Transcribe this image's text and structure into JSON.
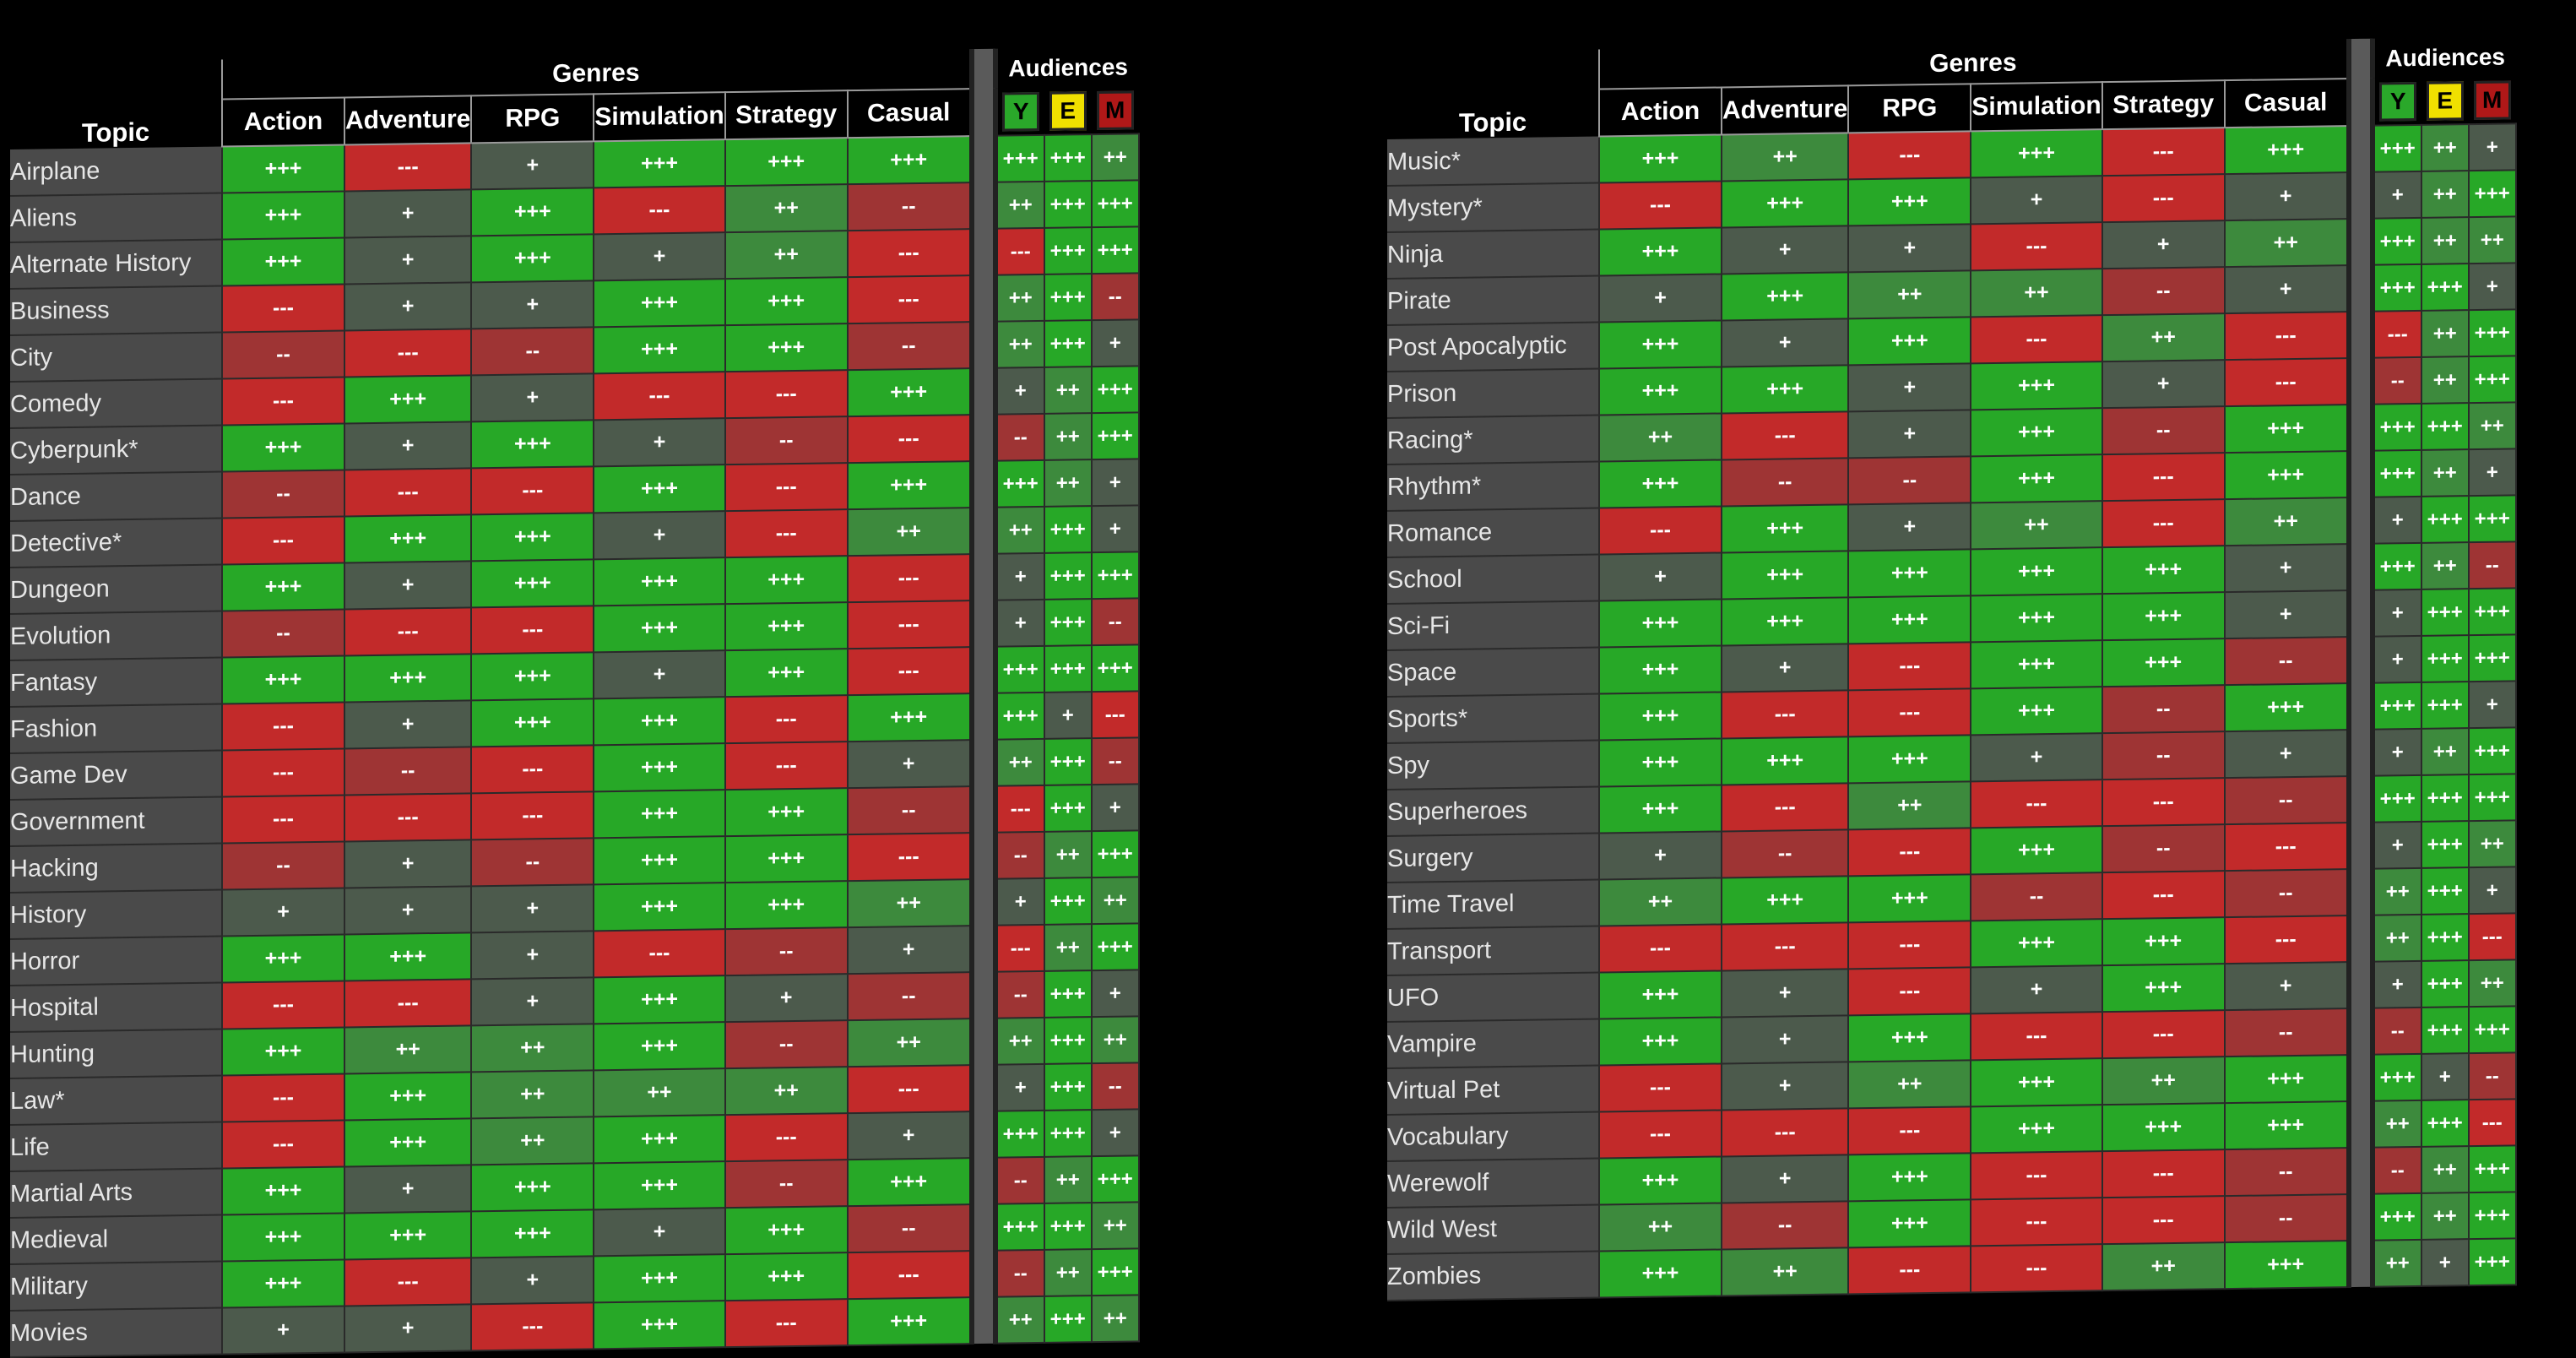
{
  "left": {
    "genres_title": "Genres",
    "audiences_title": "Audiences",
    "topic_header": "Topic",
    "genres": [
      "Action",
      "Adventure",
      "RPG",
      "Simulation",
      "Strategy",
      "Casual"
    ],
    "audiences": [
      "Y",
      "E",
      "M"
    ],
    "rows": [
      {
        "topic": "Airplane",
        "g": [
          "+++",
          "---",
          "+",
          "+++",
          "+++",
          "+++"
        ],
        "a": [
          "+++",
          "+++",
          "++"
        ]
      },
      {
        "topic": "Aliens",
        "g": [
          "+++",
          "+",
          "+++",
          "---",
          "++",
          "--"
        ],
        "a": [
          "++",
          "+++",
          "+++"
        ]
      },
      {
        "topic": "Alternate History",
        "g": [
          "+++",
          "+",
          "+++",
          "+",
          "++",
          "---"
        ],
        "a": [
          "---",
          "+++",
          "+++"
        ]
      },
      {
        "topic": "Business",
        "g": [
          "---",
          "+",
          "+",
          "+++",
          "+++",
          "---"
        ],
        "a": [
          "++",
          "+++",
          "--"
        ]
      },
      {
        "topic": "City",
        "g": [
          "--",
          "---",
          "--",
          "+++",
          "+++",
          "--"
        ],
        "a": [
          "++",
          "+++",
          "+"
        ]
      },
      {
        "topic": "Comedy",
        "g": [
          "---",
          "+++",
          "+",
          "---",
          "---",
          "+++"
        ],
        "a": [
          "+",
          "++",
          "+++"
        ]
      },
      {
        "topic": "Cyberpunk*",
        "g": [
          "+++",
          "+",
          "+++",
          "+",
          "--",
          "---"
        ],
        "a": [
          "--",
          "++",
          "+++"
        ]
      },
      {
        "topic": "Dance",
        "g": [
          "--",
          "---",
          "---",
          "+++",
          "---",
          "+++"
        ],
        "a": [
          "+++",
          "++",
          "+"
        ]
      },
      {
        "topic": "Detective*",
        "g": [
          "---",
          "+++",
          "+++",
          "+",
          "---",
          "++"
        ],
        "a": [
          "++",
          "+++",
          "+"
        ]
      },
      {
        "topic": "Dungeon",
        "g": [
          "+++",
          "+",
          "+++",
          "+++",
          "+++",
          "---"
        ],
        "a": [
          "+",
          "+++",
          "+++"
        ]
      },
      {
        "topic": "Evolution",
        "g": [
          "--",
          "---",
          "---",
          "+++",
          "+++",
          "---"
        ],
        "a": [
          "+",
          "+++",
          "--"
        ]
      },
      {
        "topic": "Fantasy",
        "g": [
          "+++",
          "+++",
          "+++",
          "+",
          "+++",
          "---"
        ],
        "a": [
          "+++",
          "+++",
          "+++"
        ]
      },
      {
        "topic": "Fashion",
        "g": [
          "---",
          "+",
          "+++",
          "+++",
          "---",
          "+++"
        ],
        "a": [
          "+++",
          "+",
          "---"
        ]
      },
      {
        "topic": "Game Dev",
        "g": [
          "---",
          "--",
          "---",
          "+++",
          "---",
          "+"
        ],
        "a": [
          "++",
          "+++",
          "--"
        ]
      },
      {
        "topic": "Government",
        "g": [
          "---",
          "---",
          "---",
          "+++",
          "+++",
          "--"
        ],
        "a": [
          "---",
          "+++",
          "+"
        ]
      },
      {
        "topic": "Hacking",
        "g": [
          "--",
          "+",
          "--",
          "+++",
          "+++",
          "---"
        ],
        "a": [
          "--",
          "++",
          "+++"
        ]
      },
      {
        "topic": "History",
        "g": [
          "+",
          "+",
          "+",
          "+++",
          "+++",
          "++"
        ],
        "a": [
          "+",
          "+++",
          "++"
        ]
      },
      {
        "topic": "Horror",
        "g": [
          "+++",
          "+++",
          "+",
          "---",
          "--",
          "+"
        ],
        "a": [
          "---",
          "++",
          "+++"
        ]
      },
      {
        "topic": "Hospital",
        "g": [
          "---",
          "---",
          "+",
          "+++",
          "+",
          "--"
        ],
        "a": [
          "--",
          "+++",
          "+"
        ]
      },
      {
        "topic": "Hunting",
        "g": [
          "+++",
          "++",
          "++",
          "+++",
          "--",
          "++"
        ],
        "a": [
          "++",
          "+++",
          "++"
        ]
      },
      {
        "topic": "Law*",
        "g": [
          "---",
          "+++",
          "++",
          "++",
          "++",
          "---"
        ],
        "a": [
          "+",
          "+++",
          "--"
        ]
      },
      {
        "topic": "Life",
        "g": [
          "---",
          "+++",
          "++",
          "+++",
          "---",
          "+"
        ],
        "a": [
          "+++",
          "+++",
          "+"
        ]
      },
      {
        "topic": "Martial Arts",
        "g": [
          "+++",
          "+",
          "+++",
          "+++",
          "--",
          "+++"
        ],
        "a": [
          "--",
          "++",
          "+++"
        ]
      },
      {
        "topic": "Medieval",
        "g": [
          "+++",
          "+++",
          "+++",
          "+",
          "+++",
          "--"
        ],
        "a": [
          "+++",
          "+++",
          "++"
        ]
      },
      {
        "topic": "Military",
        "g": [
          "+++",
          "---",
          "+",
          "+++",
          "+++",
          "---"
        ],
        "a": [
          "--",
          "++",
          "+++"
        ]
      },
      {
        "topic": "Movies",
        "g": [
          "+",
          "+",
          "---",
          "+++",
          "---",
          "+++"
        ],
        "a": [
          "++",
          "+++",
          "++"
        ]
      }
    ]
  },
  "right": {
    "genres_title": "Genres",
    "audiences_title": "Audiences",
    "topic_header": "Topic",
    "genres": [
      "Action",
      "Adventure",
      "RPG",
      "Simulation",
      "Strategy",
      "Casual"
    ],
    "audiences": [
      "Y",
      "E",
      "M"
    ],
    "rows": [
      {
        "topic": "Music*",
        "g": [
          "+++",
          "++",
          "---",
          "+++",
          "---",
          "+++"
        ],
        "a": [
          "+++",
          "++",
          "+"
        ]
      },
      {
        "topic": "Mystery*",
        "g": [
          "---",
          "+++",
          "+++",
          "+",
          "---",
          "+"
        ],
        "a": [
          "+",
          "++",
          "+++"
        ]
      },
      {
        "topic": "Ninja",
        "g": [
          "+++",
          "+",
          "+",
          "---",
          "+",
          "++"
        ],
        "a": [
          "+++",
          "++",
          "++"
        ]
      },
      {
        "topic": "Pirate",
        "g": [
          "+",
          "+++",
          "++",
          "++",
          "--",
          "+"
        ],
        "a": [
          "+++",
          "+++",
          "+"
        ]
      },
      {
        "topic": "Post Apocalyptic",
        "g": [
          "+++",
          "+",
          "+++",
          "---",
          "++",
          "---"
        ],
        "a": [
          "---",
          "++",
          "+++"
        ]
      },
      {
        "topic": "Prison",
        "g": [
          "+++",
          "+++",
          "+",
          "+++",
          "+",
          "---"
        ],
        "a": [
          "--",
          "++",
          "+++"
        ]
      },
      {
        "topic": "Racing*",
        "g": [
          "++",
          "---",
          "+",
          "+++",
          "--",
          "+++"
        ],
        "a": [
          "+++",
          "+++",
          "++"
        ]
      },
      {
        "topic": "Rhythm*",
        "g": [
          "+++",
          "--",
          "--",
          "+++",
          "---",
          "+++"
        ],
        "a": [
          "+++",
          "++",
          "+"
        ]
      },
      {
        "topic": "Romance",
        "g": [
          "---",
          "+++",
          "+",
          "++",
          "---",
          "++"
        ],
        "a": [
          "+",
          "+++",
          "+++"
        ]
      },
      {
        "topic": "School",
        "g": [
          "+",
          "+++",
          "+++",
          "+++",
          "+++",
          "+"
        ],
        "a": [
          "+++",
          "++",
          "--"
        ]
      },
      {
        "topic": "Sci-Fi",
        "g": [
          "+++",
          "+++",
          "+++",
          "+++",
          "+++",
          "+"
        ],
        "a": [
          "+",
          "+++",
          "+++"
        ]
      },
      {
        "topic": "Space",
        "g": [
          "+++",
          "+",
          "---",
          "+++",
          "+++",
          "--"
        ],
        "a": [
          "+",
          "+++",
          "+++"
        ]
      },
      {
        "topic": "Sports*",
        "g": [
          "+++",
          "---",
          "---",
          "+++",
          "--",
          "+++"
        ],
        "a": [
          "+++",
          "+++",
          "+"
        ]
      },
      {
        "topic": "Spy",
        "g": [
          "+++",
          "+++",
          "+++",
          "+",
          "--",
          "+"
        ],
        "a": [
          "+",
          "++",
          "+++"
        ]
      },
      {
        "topic": "Superheroes",
        "g": [
          "+++",
          "---",
          "++",
          "---",
          "---",
          "--"
        ],
        "a": [
          "+++",
          "+++",
          "+++"
        ]
      },
      {
        "topic": "Surgery",
        "g": [
          "+",
          "--",
          "---",
          "+++",
          "--",
          "---"
        ],
        "a": [
          "+",
          "+++",
          "++"
        ]
      },
      {
        "topic": "Time Travel",
        "g": [
          "++",
          "+++",
          "+++",
          "--",
          "---",
          "--"
        ],
        "a": [
          "++",
          "+++",
          "+"
        ]
      },
      {
        "topic": "Transport",
        "g": [
          "---",
          "---",
          "---",
          "+++",
          "+++",
          "---"
        ],
        "a": [
          "++",
          "+++",
          "---"
        ]
      },
      {
        "topic": "UFO",
        "g": [
          "+++",
          "+",
          "---",
          "+",
          "+++",
          "+"
        ],
        "a": [
          "+",
          "+++",
          "++"
        ]
      },
      {
        "topic": "Vampire",
        "g": [
          "+++",
          "+",
          "+++",
          "---",
          "---",
          "--"
        ],
        "a": [
          "--",
          "+++",
          "+++"
        ]
      },
      {
        "topic": "Virtual Pet",
        "g": [
          "---",
          "+",
          "++",
          "+++",
          "++",
          "+++"
        ],
        "a": [
          "+++",
          "+",
          "--"
        ]
      },
      {
        "topic": "Vocabulary",
        "g": [
          "---",
          "---",
          "---",
          "+++",
          "+++",
          "+++"
        ],
        "a": [
          "++",
          "+++",
          "---"
        ]
      },
      {
        "topic": "Werewolf",
        "g": [
          "+++",
          "+",
          "+++",
          "---",
          "---",
          "--"
        ],
        "a": [
          "--",
          "++",
          "+++"
        ]
      },
      {
        "topic": "Wild West",
        "g": [
          "++",
          "--",
          "+++",
          "---",
          "---",
          "--"
        ],
        "a": [
          "+++",
          "++",
          "+++"
        ]
      },
      {
        "topic": "Zombies",
        "g": [
          "+++",
          "++",
          "---",
          "---",
          "++",
          "+++"
        ],
        "a": [
          "++",
          "+",
          "+++"
        ]
      }
    ]
  },
  "colors": {
    "strong_negative": "#c22a2a",
    "negative": "#9e3434",
    "neutral_positive": "#4c5a4c",
    "positive": "#3d8a3d",
    "strong_positive": "#27a827",
    "topic_bg": "#4a4a4a",
    "badge_y": "#2aa82a",
    "badge_e": "#f0e000",
    "badge_m": "#b01818"
  }
}
